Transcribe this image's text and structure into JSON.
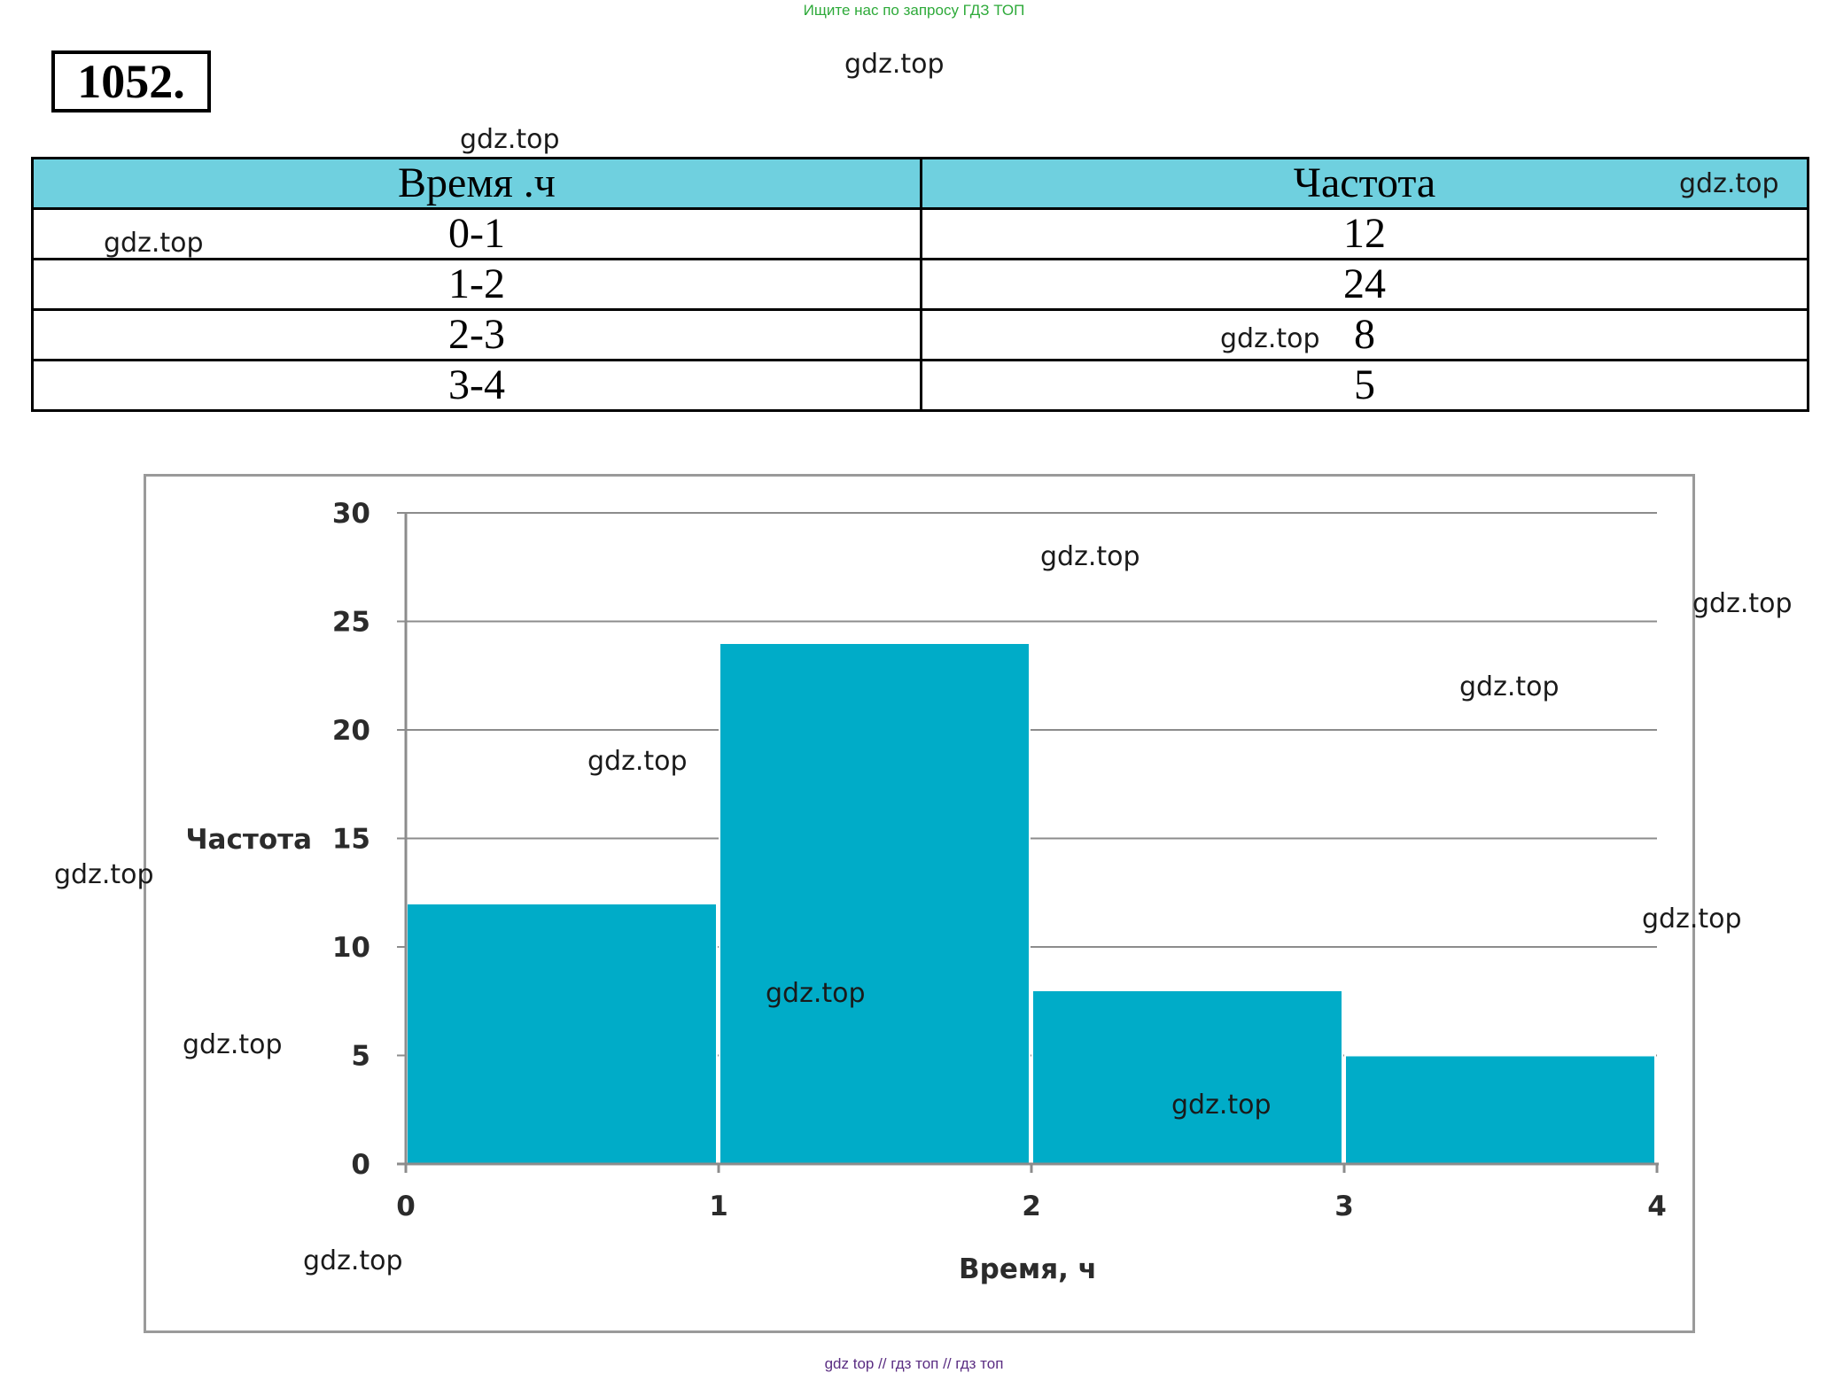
{
  "banner": {
    "text": "Ищите нас по запросу ГДЗ ТОП"
  },
  "problem": {
    "number": "1052."
  },
  "watermark": "gdz.top",
  "table": {
    "headers": [
      "Время .ч",
      "Частота"
    ],
    "rows": [
      [
        "0-1",
        "12"
      ],
      [
        "1-2",
        "24"
      ],
      [
        "2-3",
        "8"
      ],
      [
        "3-4",
        "5"
      ]
    ],
    "header_color": "#6fd0df"
  },
  "chart_data": {
    "type": "bar",
    "title": "",
    "xlabel": "Время, ч",
    "ylabel": "Частота",
    "bins": [
      [
        0,
        1
      ],
      [
        1,
        2
      ],
      [
        2,
        3
      ],
      [
        3,
        4
      ]
    ],
    "values": [
      12,
      24,
      8,
      5
    ],
    "x_ticks": [
      "0",
      "1",
      "2",
      "3",
      "4"
    ],
    "y_ticks": [
      "0",
      "5",
      "10",
      "15",
      "20",
      "25",
      "30"
    ],
    "xlim": [
      0,
      4
    ],
    "ylim": [
      0,
      30
    ],
    "grid": true,
    "bar_color": "#00acc8"
  },
  "footer": {
    "text": "gdz top  //  гдз топ  //  гдз топ"
  }
}
